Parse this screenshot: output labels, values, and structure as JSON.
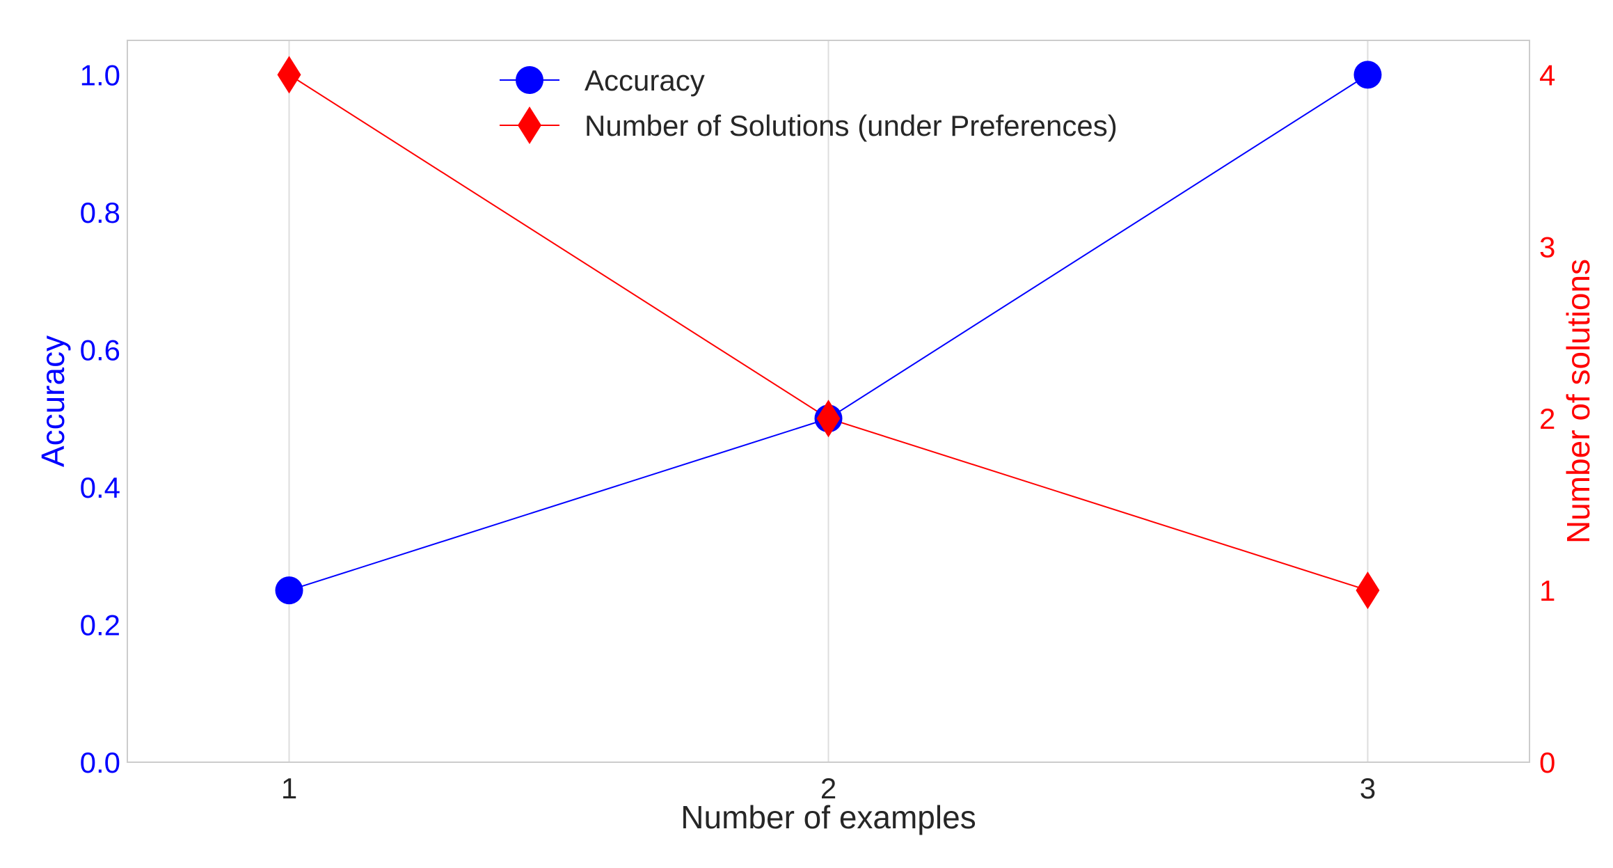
{
  "chart_data": {
    "type": "line",
    "xlabel": "Number of examples",
    "ylabel_left": "Accuracy",
    "ylabel_right": "Number of solutions",
    "x": [
      1,
      2,
      3
    ],
    "x_tick_labels": [
      "1",
      "2",
      "3"
    ],
    "xlim": [
      0.7,
      3.3
    ],
    "y_left_lim": [
      0.0,
      1.05
    ],
    "y_left_ticks": [
      "0.0",
      "0.2",
      "0.4",
      "0.6",
      "0.8",
      "1.0"
    ],
    "y_right_lim": [
      0,
      4.2
    ],
    "y_right_ticks": [
      "0",
      "1",
      "2",
      "3",
      "4"
    ],
    "grid": "vertical",
    "legend_placement": "top-center",
    "series": [
      {
        "name": "Accuracy",
        "axis": "left",
        "marker": "circle",
        "color": "#0000ff",
        "values": [
          0.25,
          0.5,
          1.0
        ]
      },
      {
        "name": "Number of Solutions (under Preferences)",
        "axis": "right",
        "marker": "diamond",
        "color": "#ff0000",
        "values": [
          4,
          2,
          1
        ]
      }
    ],
    "colors": {
      "left_axis": "#0000ff",
      "right_axis": "#ff0000",
      "text": "#262626",
      "grid": "#dddddd",
      "frame": "#cccccc"
    }
  }
}
